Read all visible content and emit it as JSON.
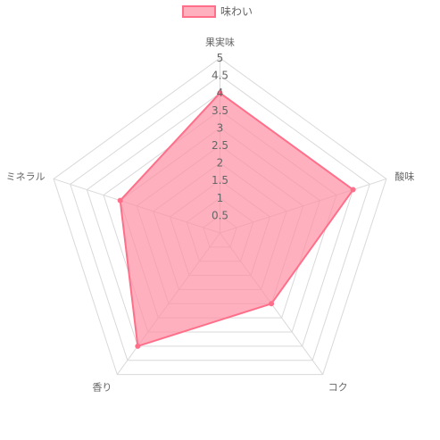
{
  "chart_data": {
    "type": "radar",
    "labels": [
      "果実味",
      "酸味",
      "コク",
      "香り",
      "ミネラル"
    ],
    "series": [
      {
        "name": "味わい",
        "values": [
          4,
          4,
          2.5,
          4,
          3
        ],
        "fill": "#ff8fa3",
        "stroke": "#ff6f8a"
      }
    ],
    "r_min": 0,
    "r_max": 5,
    "step": 0.5,
    "ticks": [
      "0.5",
      "1",
      "1.5",
      "2",
      "2.5",
      "3",
      "3.5",
      "4",
      "4.5",
      "5"
    ],
    "legend": {
      "position": "top"
    },
    "grid": true
  }
}
